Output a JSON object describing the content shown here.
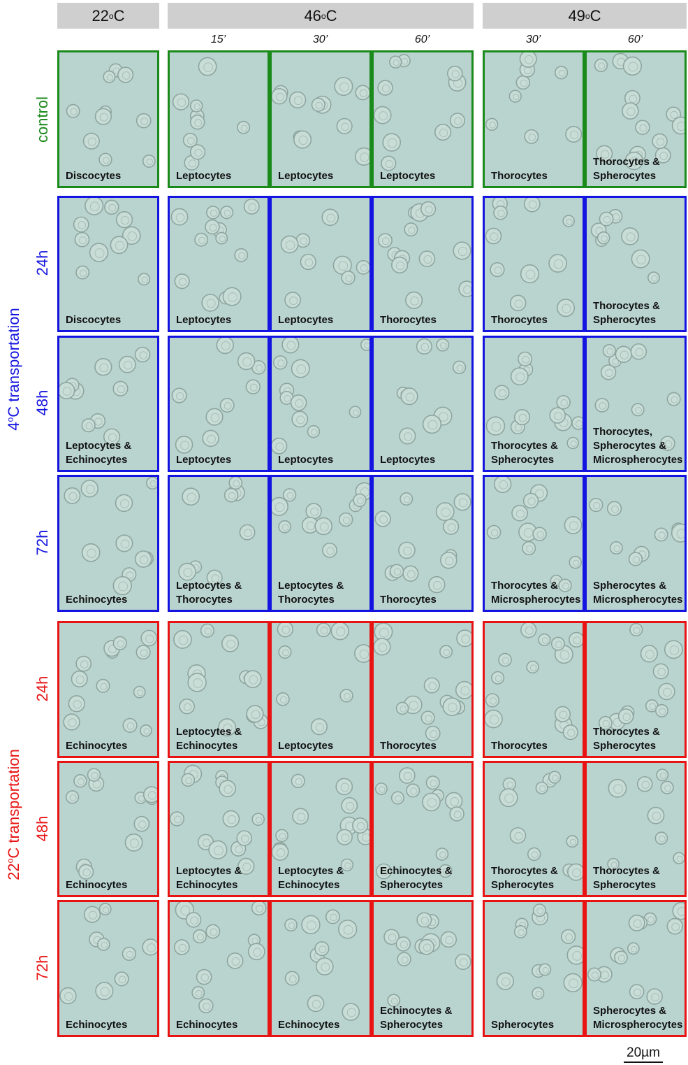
{
  "headers": [
    {
      "id": "22",
      "num": "22",
      "deg": "o",
      "unit": "C"
    },
    {
      "id": "46",
      "num": "46",
      "deg": "o",
      "unit": "C"
    },
    {
      "id": "49",
      "num": "49",
      "deg": "o",
      "unit": "C"
    }
  ],
  "times": [
    "15’",
    "30’",
    "60’",
    "30’",
    "60’"
  ],
  "sections": [
    {
      "id": "control",
      "text": "control",
      "color": "#1a8a1a"
    },
    {
      "id": "cold",
      "num": "4",
      "deg": "o",
      "rest": "C transportation",
      "color": "#1414e0"
    },
    {
      "id": "warm",
      "num": "22",
      "deg": "o",
      "rest": "C transportation",
      "color": "#e81414"
    }
  ],
  "row_labels": [
    "24h",
    "48h",
    "72h",
    "24h",
    "48h",
    "72h"
  ],
  "cells": [
    [
      "Discocytes",
      "Leptocytes",
      "Leptocytes",
      "Leptocytes",
      "Thorocytes",
      "Thorocytes &\nSpherocytes"
    ],
    [
      "Discocytes",
      "Leptocytes",
      "Leptocytes",
      "Thorocytes",
      "Thorocytes",
      "Thorocytes &\nSpherocytes"
    ],
    [
      "Leptocytes &\nEchinocytes",
      "Leptocytes",
      "Leptocytes",
      "Leptocytes",
      "Thorocytes &\nSpherocytes",
      "Thorocytes,\nSpherocytes &\nMicrospherocytes"
    ],
    [
      "Echinocytes",
      "Leptocytes &\nThorocytes",
      "Leptocytes &\nThorocytes",
      "Thorocytes",
      "Thorocytes &\nMicrospherocytes",
      "Spherocytes &\nMicrospherocytes"
    ],
    [
      "Echinocytes",
      "Leptocytes &\nEchinocytes",
      "Leptocytes",
      "Thorocytes",
      "Thorocytes",
      "Thorocytes &\nSpherocytes"
    ],
    [
      "Echinocytes",
      "Leptocytes &\nEchinocytes",
      "Leptocytes &\nEchinocytes",
      "Echinocytes &\nSpherocytes",
      "Thorocytes &\nSpherocytes",
      "Thorocytes &\nSpherocytes"
    ],
    [
      "Echinocytes",
      "Echinocytes",
      "Echinocytes",
      "Echinocytes &\nSpherocytes",
      "Spherocytes",
      "Spherocytes &\nMicrospherocytes"
    ]
  ],
  "scale_bar": "20µm",
  "colors": {
    "control": "#1a8a1a",
    "cold": "#1414e0",
    "warm": "#e81414",
    "field": "#b9d4cf",
    "header_bg": "#cfcfcf"
  }
}
